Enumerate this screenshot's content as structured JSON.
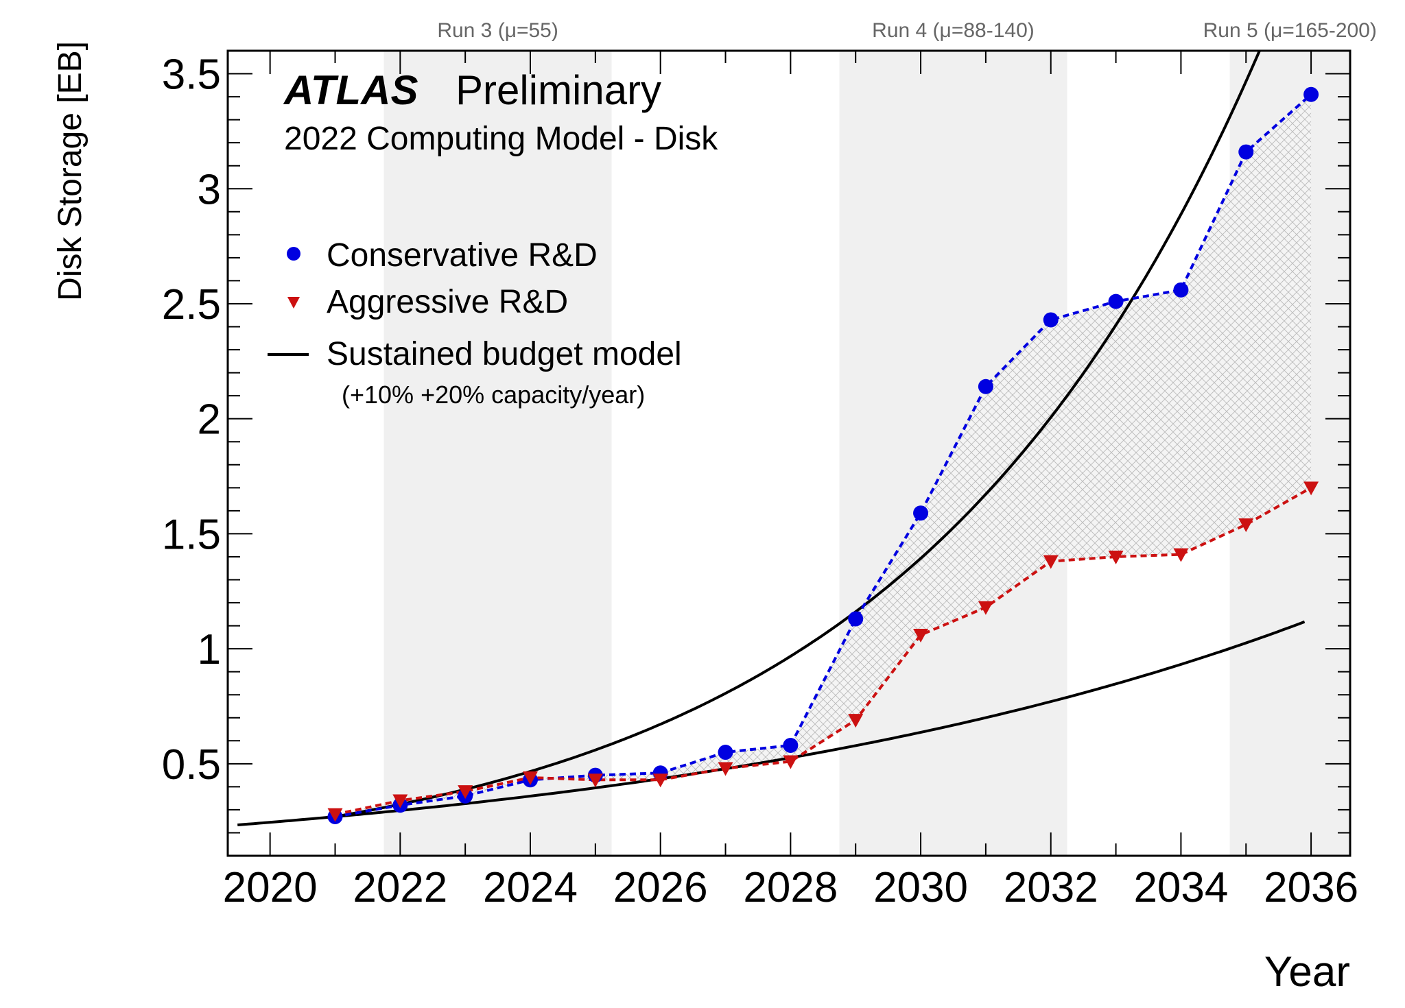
{
  "chart_data": {
    "type": "line",
    "title_bold": "ATLAS",
    "title_rest": "Preliminary",
    "subtitle": "2022 Computing Model - Disk",
    "xlabel": "Year",
    "ylabel": "Disk Storage [EB]",
    "xlim": [
      2019.35,
      2036.6
    ],
    "ylim": [
      0.1,
      3.6
    ],
    "x_ticks": [
      2020,
      2022,
      2024,
      2026,
      2028,
      2030,
      2032,
      2034,
      2036
    ],
    "y_ticks": [
      0.5,
      1,
      1.5,
      2,
      2.5,
      3,
      3.5
    ],
    "y_tick_labels": [
      "0.5",
      "1",
      "1.5",
      "2",
      "2.5",
      "3",
      "3.5"
    ],
    "runs": [
      {
        "label": "Run 3 (μ=55)",
        "start": 2021.75,
        "end": 2025.25
      },
      {
        "label": "Run 4 (μ=88-140)",
        "start": 2028.75,
        "end": 2032.25
      },
      {
        "label": "Run 5 (μ=165-200)",
        "start": 2034.75,
        "end": 2036.6
      }
    ],
    "series": [
      {
        "name": "Conservative R&D",
        "marker": "circle",
        "color": "#0000e0",
        "x": [
          2021,
          2022,
          2023,
          2024,
          2025,
          2026,
          2027,
          2028,
          2029,
          2030,
          2031,
          2032,
          2033,
          2034,
          2035,
          2036
        ],
        "values": [
          0.27,
          0.32,
          0.36,
          0.43,
          0.45,
          0.46,
          0.55,
          0.58,
          1.13,
          1.59,
          2.14,
          2.43,
          2.51,
          2.56,
          3.16,
          3.41
        ]
      },
      {
        "name": "Aggressive R&D",
        "marker": "triangle-down",
        "color": "#cc1111",
        "x": [
          2021,
          2022,
          2023,
          2024,
          2025,
          2026,
          2027,
          2028,
          2029,
          2030,
          2031,
          2032,
          2033,
          2034,
          2035,
          2036
        ],
        "values": [
          0.28,
          0.34,
          0.38,
          0.44,
          0.43,
          0.43,
          0.48,
          0.51,
          0.69,
          1.06,
          1.18,
          1.38,
          1.4,
          1.41,
          1.54,
          1.7
        ]
      }
    ],
    "budget_model": {
      "name": "Sustained budget model",
      "note": "(+10% +20% capacity/year)",
      "color": "#000000",
      "base_year": 2021,
      "base_value": 0.27,
      "growth_rates": [
        0.1,
        0.2
      ],
      "x_start": [
        2019.5,
        2021
      ],
      "x_end": [
        2035.9,
        2036.0
      ]
    },
    "legend_position": "top-left",
    "grid": false
  }
}
